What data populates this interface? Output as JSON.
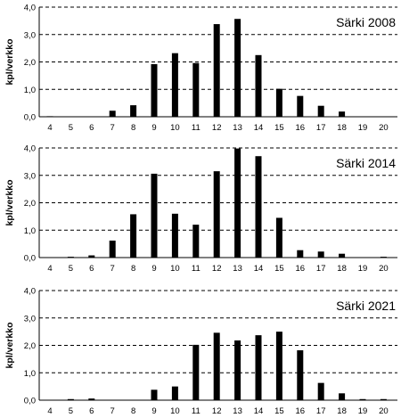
{
  "chart_data": [
    {
      "type": "bar",
      "title": "Särki 2008",
      "ylabel": "kpl/verkko",
      "ylim": [
        0,
        4
      ],
      "yticks": [
        "0,0",
        "1,0",
        "2,0",
        "3,0",
        "4,0"
      ],
      "grid": "dashed-horizontal",
      "categories": [
        "4",
        "5",
        "6",
        "7",
        "8",
        "9",
        "10",
        "11",
        "12",
        "13",
        "14",
        "15",
        "16",
        "17",
        "18",
        "19",
        "20"
      ],
      "values": [
        0.02,
        0,
        0,
        0.22,
        0.42,
        1.92,
        2.32,
        1.96,
        3.38,
        3.57,
        2.25,
        1.02,
        0.76,
        0.4,
        0.19,
        0,
        0
      ]
    },
    {
      "type": "bar",
      "title": "Särki 2014",
      "ylabel": "kpl/verkko",
      "ylim": [
        0,
        4
      ],
      "yticks": [
        "0,0",
        "1,0",
        "2,0",
        "3,0",
        "4,0"
      ],
      "grid": "dashed-horizontal",
      "categories": [
        "4",
        "5",
        "6",
        "7",
        "8",
        "9",
        "10",
        "11",
        "12",
        "13",
        "14",
        "15",
        "16",
        "17",
        "18",
        "19",
        "20"
      ],
      "values": [
        0,
        0.03,
        0.08,
        0.62,
        1.58,
        3.06,
        1.6,
        1.2,
        3.15,
        3.98,
        3.7,
        1.45,
        0.27,
        0.22,
        0.14,
        0,
        0.03
      ]
    },
    {
      "type": "bar",
      "title": "Särki 2021",
      "ylabel": "kpl/verkko",
      "ylim": [
        0,
        4
      ],
      "yticks": [
        "0,0",
        "1,0",
        "2,0",
        "3,0",
        "4,0"
      ],
      "grid": "dashed-horizontal",
      "categories": [
        "4",
        "5",
        "6",
        "7",
        "8",
        "9",
        "10",
        "11",
        "12",
        "13",
        "14",
        "15",
        "16",
        "17",
        "18",
        "19",
        "20"
      ],
      "values": [
        0,
        0.04,
        0.06,
        0,
        0,
        0.38,
        0.5,
        2.02,
        2.46,
        2.18,
        2.37,
        2.5,
        1.82,
        0.63,
        0.25,
        0.04,
        0.04
      ]
    }
  ]
}
